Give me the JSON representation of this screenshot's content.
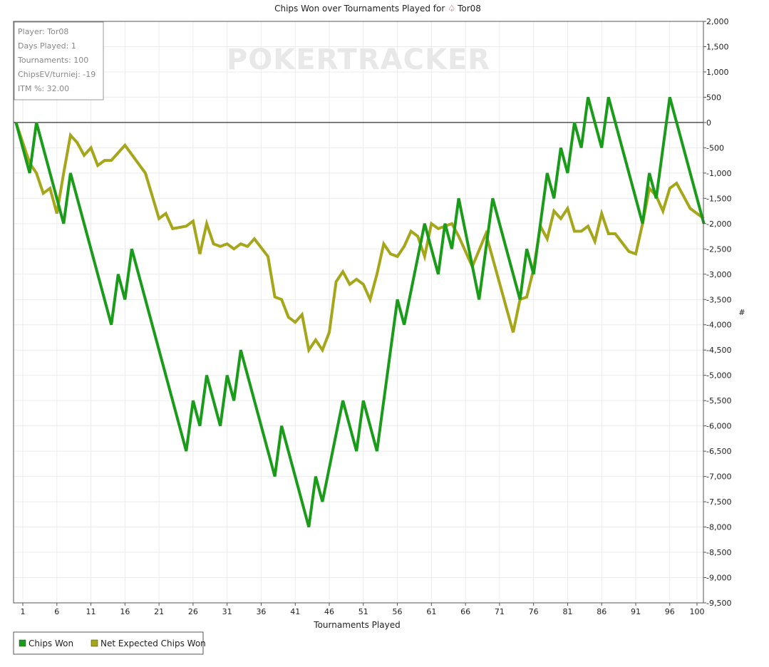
{
  "chart_data": {
    "type": "line",
    "title": "Chips Won over Tournaments Played for",
    "player_name": "Tor08",
    "xlabel": "Tournaments Played",
    "ylabel": "#",
    "x_ticks": [
      1,
      6,
      11,
      16,
      21,
      26,
      31,
      36,
      41,
      46,
      51,
      56,
      61,
      66,
      71,
      76,
      81,
      86,
      91,
      96,
      100
    ],
    "xlim": [
      0,
      100
    ],
    "ylim": [
      -9500,
      2000
    ],
    "y_tick_step": 500,
    "grid": true,
    "legend_position": "bottom-left",
    "watermark": "POKERTRACKER",
    "info_box": {
      "player": "Player: Tor08",
      "days_played": "Days Played: 1",
      "tournaments": "Tournaments: 100",
      "chips_ev": "ChipsEV/turniej: -19",
      "itm": "ITM %: 32.00"
    },
    "series": [
      {
        "name": "Chips Won",
        "color": "#1a9c1a",
        "points": [
          [
            0,
            0
          ],
          [
            2,
            -1000
          ],
          [
            3,
            0
          ],
          [
            7,
            -2000
          ],
          [
            8,
            -1000
          ],
          [
            14,
            -4000
          ],
          [
            15,
            -3000
          ],
          [
            16,
            -3500
          ],
          [
            17,
            -2500
          ],
          [
            25,
            -6500
          ],
          [
            26,
            -5500
          ],
          [
            27,
            -6000
          ],
          [
            28,
            -5000
          ],
          [
            30,
            -6000
          ],
          [
            31,
            -5000
          ],
          [
            32,
            -5500
          ],
          [
            33,
            -4500
          ],
          [
            38,
            -7000
          ],
          [
            39,
            -6000
          ],
          [
            43,
            -8000
          ],
          [
            44,
            -7000
          ],
          [
            45,
            -7500
          ],
          [
            48,
            -5500
          ],
          [
            50,
            -6500
          ],
          [
            51,
            -5500
          ],
          [
            53,
            -6500
          ],
          [
            56,
            -3500
          ],
          [
            57,
            -4000
          ],
          [
            60,
            -2000
          ],
          [
            62,
            -3000
          ],
          [
            63,
            -2000
          ],
          [
            64,
            -2500
          ],
          [
            65,
            -1500
          ],
          [
            68,
            -3500
          ],
          [
            70,
            -1500
          ],
          [
            74,
            -3500
          ],
          [
            75,
            -2500
          ],
          [
            76,
            -3000
          ],
          [
            78,
            -1000
          ],
          [
            79,
            -1500
          ],
          [
            80,
            -500
          ],
          [
            81,
            -1000
          ],
          [
            82,
            0
          ],
          [
            83,
            -500
          ],
          [
            84,
            500
          ],
          [
            86,
            -500
          ],
          [
            87,
            500
          ],
          [
            92,
            -2000
          ],
          [
            93,
            -1000
          ],
          [
            94,
            -1500
          ],
          [
            96,
            500
          ],
          [
            101,
            -2000
          ]
        ]
      },
      {
        "name": "Net Expected Chips Won",
        "color": "#a6a61a",
        "points": [
          [
            0,
            0
          ],
          [
            1,
            -400
          ],
          [
            2,
            -800
          ],
          [
            3,
            -1000
          ],
          [
            4,
            -1400
          ],
          [
            5,
            -1300
          ],
          [
            6,
            -1800
          ],
          [
            7,
            -1000
          ],
          [
            8,
            -250
          ],
          [
            9,
            -400
          ],
          [
            10,
            -650
          ],
          [
            11,
            -500
          ],
          [
            12,
            -850
          ],
          [
            13,
            -750
          ],
          [
            14,
            -750
          ],
          [
            16,
            -450
          ],
          [
            19,
            -1000
          ],
          [
            21,
            -1900
          ],
          [
            22,
            -1800
          ],
          [
            23,
            -2100
          ],
          [
            25,
            -2050
          ],
          [
            26,
            -1950
          ],
          [
            27,
            -2600
          ],
          [
            28,
            -2000
          ],
          [
            29,
            -2400
          ],
          [
            30,
            -2450
          ],
          [
            31,
            -2400
          ],
          [
            32,
            -2500
          ],
          [
            33,
            -2400
          ],
          [
            34,
            -2450
          ],
          [
            35,
            -2300
          ],
          [
            37,
            -2650
          ],
          [
            38,
            -3450
          ],
          [
            39,
            -3500
          ],
          [
            40,
            -3850
          ],
          [
            41,
            -3950
          ],
          [
            42,
            -3800
          ],
          [
            43,
            -4500
          ],
          [
            44,
            -4300
          ],
          [
            45,
            -4500
          ],
          [
            46,
            -4150
          ],
          [
            47,
            -3150
          ],
          [
            48,
            -2950
          ],
          [
            49,
            -3200
          ],
          [
            50,
            -3100
          ],
          [
            51,
            -3200
          ],
          [
            52,
            -3500
          ],
          [
            53,
            -3000
          ],
          [
            54,
            -2400
          ],
          [
            55,
            -2600
          ],
          [
            56,
            -2650
          ],
          [
            57,
            -2450
          ],
          [
            58,
            -2150
          ],
          [
            59,
            -2250
          ],
          [
            60,
            -2650
          ],
          [
            61,
            -2000
          ],
          [
            62,
            -2100
          ],
          [
            64,
            -2000
          ],
          [
            65,
            -2250
          ],
          [
            67,
            -2850
          ],
          [
            69,
            -2200
          ],
          [
            73,
            -4150
          ],
          [
            74,
            -3500
          ],
          [
            75,
            -3450
          ],
          [
            76,
            -2900
          ],
          [
            77,
            -2050
          ],
          [
            78,
            -2300
          ],
          [
            79,
            -1750
          ],
          [
            80,
            -1900
          ],
          [
            81,
            -1700
          ],
          [
            82,
            -2150
          ],
          [
            83,
            -2150
          ],
          [
            84,
            -2050
          ],
          [
            85,
            -2350
          ],
          [
            86,
            -1800
          ],
          [
            87,
            -2200
          ],
          [
            88,
            -2200
          ],
          [
            90,
            -2550
          ],
          [
            91,
            -2600
          ],
          [
            92,
            -2000
          ],
          [
            93,
            -1300
          ],
          [
            94,
            -1450
          ],
          [
            95,
            -1750
          ],
          [
            96,
            -1300
          ],
          [
            97,
            -1200
          ],
          [
            98,
            -1450
          ],
          [
            99,
            -1700
          ],
          [
            100,
            -1800
          ],
          [
            101,
            -1900
          ]
        ]
      }
    ]
  }
}
